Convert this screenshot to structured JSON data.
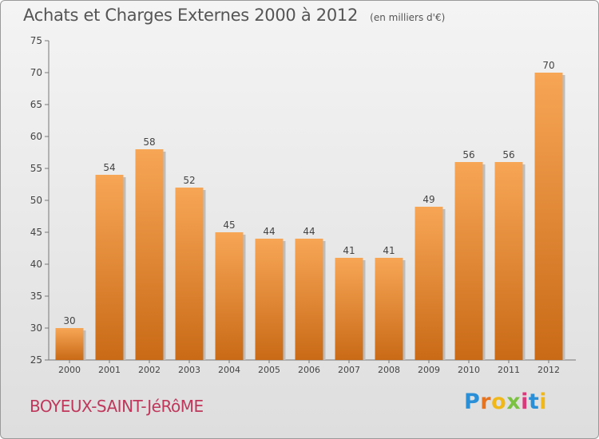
{
  "chart_data": {
    "type": "bar",
    "title": "Achats et Charges Externes 2000 à 2012",
    "unit_label": "(en milliers d'€)",
    "categories": [
      "2000",
      "2001",
      "2002",
      "2003",
      "2004",
      "2005",
      "2006",
      "2007",
      "2008",
      "2009",
      "2010",
      "2011",
      "2012"
    ],
    "values": [
      30,
      54,
      58,
      52,
      45,
      44,
      44,
      41,
      41,
      49,
      56,
      56,
      70
    ],
    "ylim": [
      25,
      75
    ],
    "yticks": [
      25,
      30,
      35,
      40,
      45,
      50,
      55,
      60,
      65,
      70,
      75
    ],
    "grid": false,
    "bar_color_top": "#f7a656",
    "bar_color_bottom": "#c96a16",
    "data_labels": true
  },
  "footer": {
    "commune": "BOYEUX-SAINT-JéRôME",
    "brand_letters": [
      "P",
      "r",
      "o",
      "x",
      "i",
      "t",
      "i"
    ],
    "brand_colors": [
      "#2a8fd6",
      "#e8731e",
      "#f0b81a",
      "#7cc242",
      "#d93a7a",
      "#2a8fd6",
      "#f0b81a"
    ]
  }
}
